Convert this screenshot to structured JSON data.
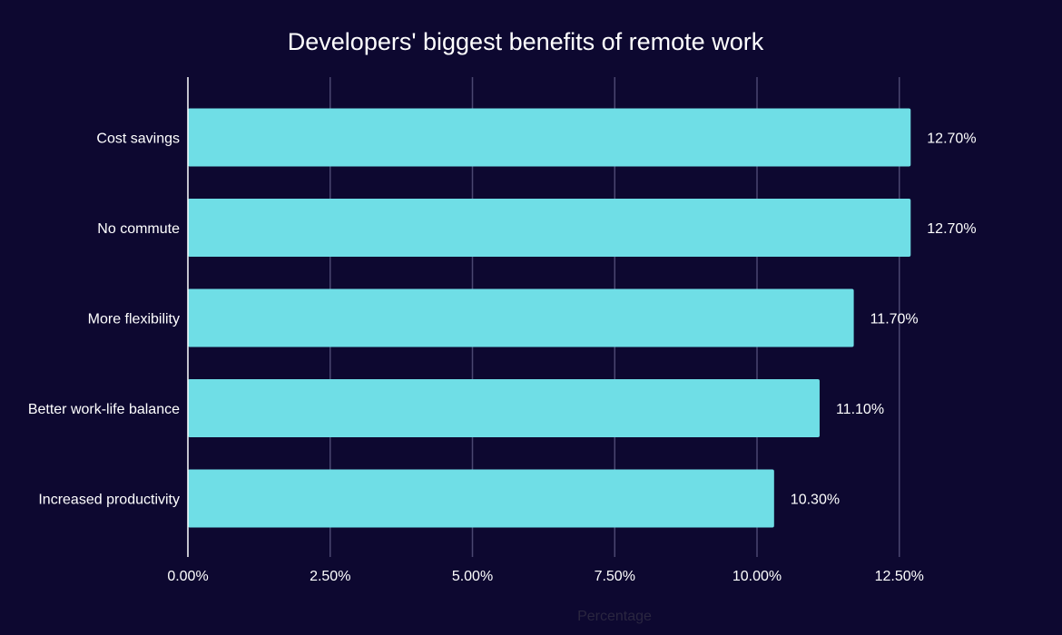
{
  "chart_data": {
    "type": "bar",
    "orientation": "horizontal",
    "title": "Developers' biggest benefits of remote work",
    "xlabel": "Percentage",
    "ylabel": "",
    "categories": [
      "Cost savings",
      "No commute",
      "More flexibility",
      "Better work-life balance",
      "Increased productivity"
    ],
    "values": [
      12.7,
      12.7,
      11.7,
      11.1,
      10.3
    ],
    "data_labels": [
      "12.70%",
      "12.70%",
      "11.70%",
      "11.10%",
      "10.30%"
    ],
    "xticks": [
      0,
      2.5,
      5,
      7.5,
      10,
      12.5
    ],
    "xtick_labels": [
      "0.00%",
      "2.50%",
      "5.00%",
      "7.50%",
      "10.00%",
      "12.50%"
    ],
    "xlim": [
      0,
      12.5
    ],
    "grid": true,
    "legend": "none",
    "colors": {
      "background": "#0d0830",
      "bar": "#6fdee6",
      "grid": "#4a4670",
      "text": "#ffffff",
      "axis_title": "#2a2640"
    }
  }
}
